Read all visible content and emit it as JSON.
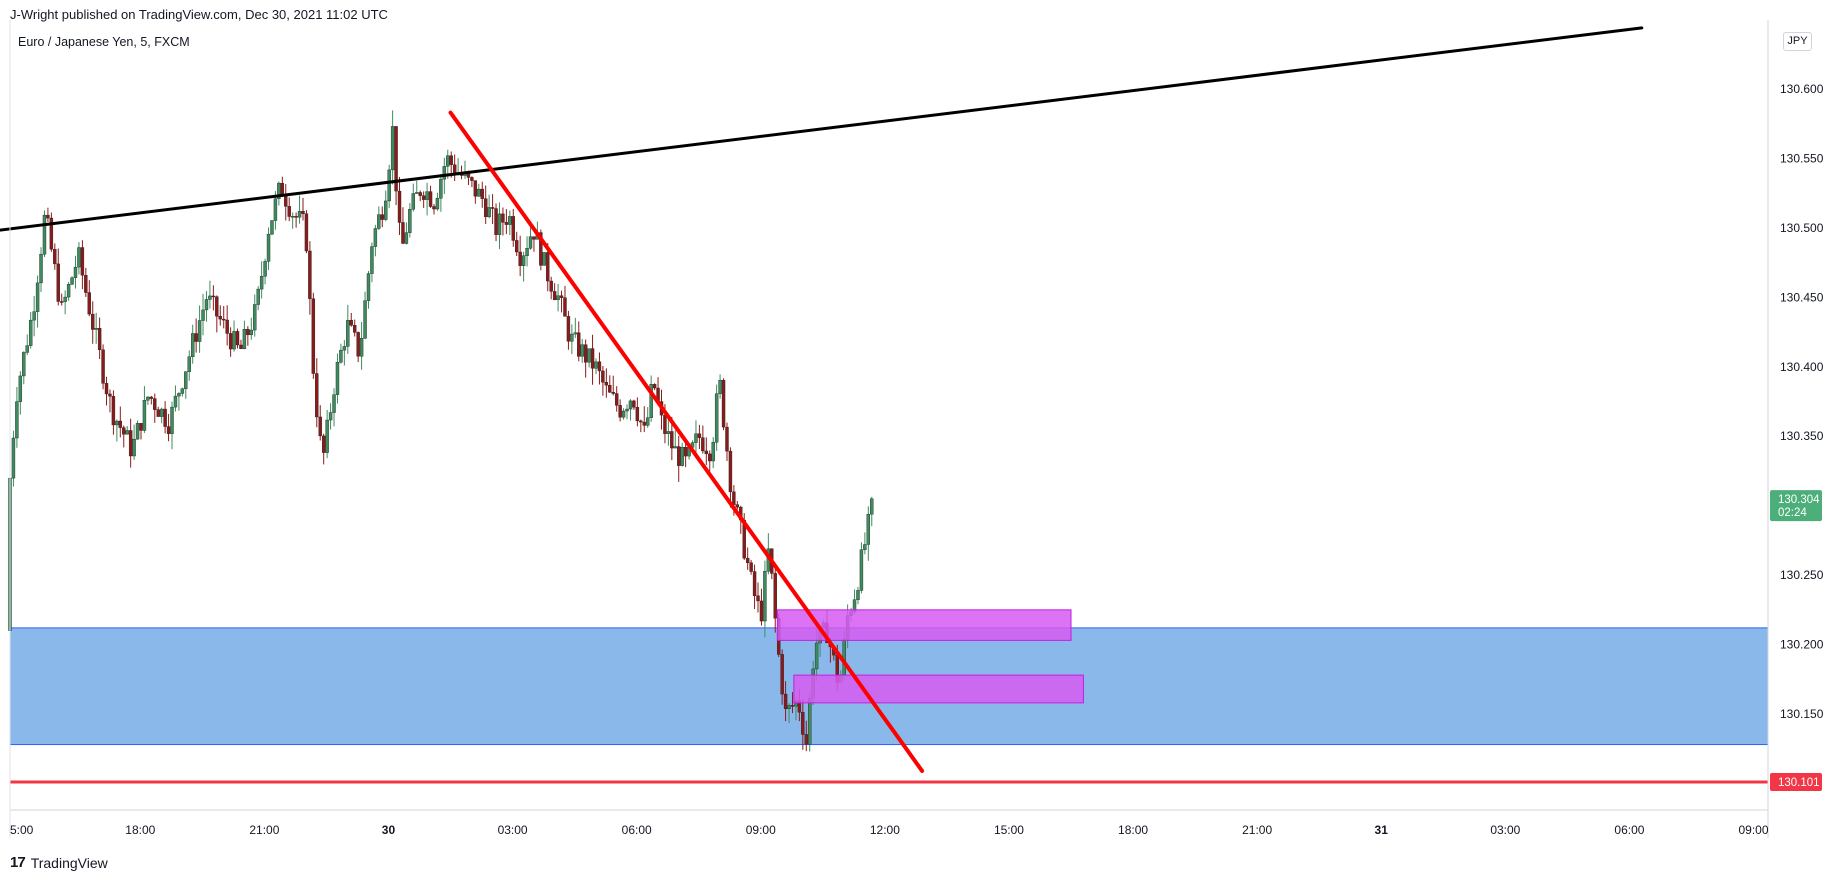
{
  "header": {
    "publisher_line": "J-Wright published on TradingView.com, Dec 30, 2021 11:02 UTC"
  },
  "legend": {
    "symbol_text": "Euro / Japanese Yen, 5, FXCM"
  },
  "currency_badge": "JPY",
  "footer": {
    "logo_glyph": "17",
    "brand": "TradingView"
  },
  "colors": {
    "up": "#26a69a",
    "down": "#ef5350",
    "candle_up_fill": "#3d8c5e",
    "candle_down_fill": "#8b1a1a",
    "zone_fill": "#8bb8ea",
    "zone_border": "#2962ff",
    "magenta_box": "#d65bf2",
    "trendline_black": "#000000",
    "trendline_red": "#ff0000",
    "support_line": "#f23645",
    "price_badge": "#4caf79",
    "axis_text": "#131722"
  },
  "chart_data": {
    "type": "candlestick",
    "title": "Euro / Japanese Yen, 5, FXCM",
    "y_axis": {
      "ticks": [
        "130.600",
        "130.550",
        "130.500",
        "130.450",
        "130.400",
        "130.350",
        "130.250",
        "130.200",
        "130.150"
      ],
      "tick_values": [
        130.6,
        130.55,
        130.5,
        130.45,
        130.4,
        130.35,
        130.25,
        130.2,
        130.15
      ],
      "range": [
        130.06,
        130.64
      ],
      "scale": "linear"
    },
    "x_axis": {
      "ticks": [
        "5:00",
        "18:00",
        "21:00",
        "30",
        "03:00",
        "06:00",
        "09:00",
        "12:00",
        "15:00",
        "18:00",
        "21:00",
        "31",
        "03:00",
        "06:00",
        "09:00"
      ],
      "tick_hours": [
        -9,
        -6,
        -3,
        0,
        3,
        6,
        9,
        12,
        15,
        18,
        21,
        24,
        27,
        30,
        33
      ]
    },
    "last_price": {
      "value": "130.304",
      "countdown": "02:24"
    },
    "support_level": {
      "value": "130.101"
    },
    "demand_zone": {
      "top": 130.212,
      "bottom": 130.128,
      "start_hour": -9.5,
      "end_hour": 33.5
    },
    "boxes": [
      {
        "top": 130.225,
        "bottom": 130.203,
        "start_hour": 9.4,
        "end_hour": 16.5
      },
      {
        "top": 130.178,
        "bottom": 130.158,
        "start_hour": 9.8,
        "end_hour": 16.8
      }
    ],
    "trendlines": [
      {
        "color": "black",
        "points": [
          [
            -9.5,
            130.498
          ],
          [
            30.3,
            130.644
          ]
        ]
      },
      {
        "color": "red",
        "points": [
          [
            1.5,
            130.583
          ],
          [
            12.9,
            130.109
          ]
        ]
      }
    ],
    "price_path": [
      [
        -9.5,
        130.21
      ],
      [
        -9.2,
        130.3
      ],
      [
        -9.0,
        130.38
      ],
      [
        -8.6,
        130.44
      ],
      [
        -8.3,
        130.51
      ],
      [
        -7.9,
        130.44
      ],
      [
        -7.5,
        130.48
      ],
      [
        -7.0,
        130.41
      ],
      [
        -6.7,
        130.37
      ],
      [
        -6.2,
        130.34
      ],
      [
        -5.8,
        130.38
      ],
      [
        -5.3,
        130.36
      ],
      [
        -4.8,
        130.41
      ],
      [
        -4.4,
        130.45
      ],
      [
        -4.0,
        130.43
      ],
      [
        -3.6,
        130.41
      ],
      [
        -3.2,
        130.44
      ],
      [
        -2.9,
        130.5
      ],
      [
        -2.6,
        130.53
      ],
      [
        -2.3,
        130.51
      ],
      [
        -2.0,
        130.5
      ],
      [
        -1.8,
        130.39
      ],
      [
        -1.6,
        130.33
      ],
      [
        -1.3,
        130.39
      ],
      [
        -1.0,
        130.43
      ],
      [
        -0.7,
        130.41
      ],
      [
        -0.4,
        130.49
      ],
      [
        -0.1,
        130.52
      ],
      [
        0.1,
        130.57
      ],
      [
        0.3,
        130.48
      ],
      [
        0.5,
        130.51
      ],
      [
        0.8,
        130.53
      ],
      [
        1.1,
        130.52
      ],
      [
        1.4,
        130.55
      ],
      [
        1.7,
        130.54
      ],
      [
        2.0,
        130.53
      ],
      [
        2.3,
        130.52
      ],
      [
        2.6,
        130.5
      ],
      [
        2.9,
        130.51
      ],
      [
        3.2,
        130.48
      ],
      [
        3.5,
        130.5
      ],
      [
        3.8,
        130.47
      ],
      [
        4.1,
        130.45
      ],
      [
        4.4,
        130.42
      ],
      [
        4.7,
        130.41
      ],
      [
        5.0,
        130.4
      ],
      [
        5.3,
        130.38
      ],
      [
        5.6,
        130.37
      ],
      [
        5.9,
        130.38
      ],
      [
        6.2,
        130.35
      ],
      [
        6.4,
        130.39
      ],
      [
        6.6,
        130.36
      ],
      [
        6.9,
        130.34
      ],
      [
        7.2,
        130.33
      ],
      [
        7.5,
        130.35
      ],
      [
        7.8,
        130.34
      ],
      [
        8.0,
        130.39
      ],
      [
        8.3,
        130.31
      ],
      [
        8.6,
        130.27
      ],
      [
        8.8,
        130.24
      ],
      [
        9.0,
        130.22
      ],
      [
        9.2,
        130.27
      ],
      [
        9.4,
        130.2
      ],
      [
        9.6,
        130.15
      ],
      [
        9.9,
        130.16
      ],
      [
        10.1,
        130.13
      ],
      [
        10.3,
        130.2
      ],
      [
        10.6,
        130.21
      ],
      [
        10.9,
        130.17
      ],
      [
        11.1,
        130.22
      ],
      [
        11.3,
        130.24
      ],
      [
        11.5,
        130.27
      ],
      [
        11.7,
        130.3
      ]
    ]
  }
}
